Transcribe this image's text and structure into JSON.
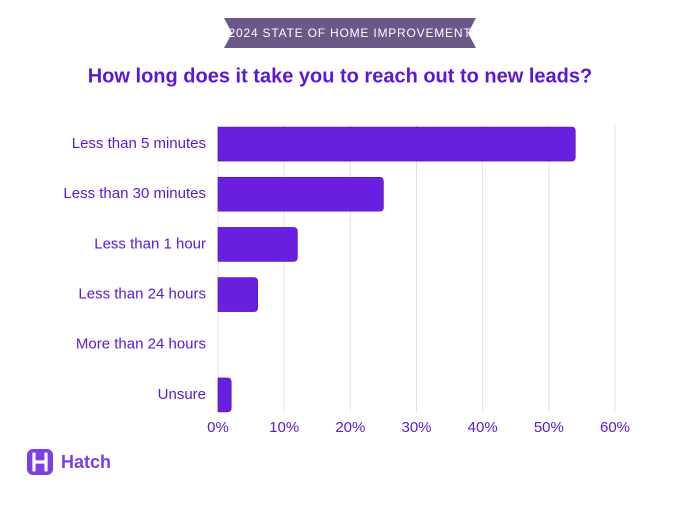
{
  "chart_data": {
    "type": "bar",
    "orientation": "horizontal",
    "subtitle": "2024 STATE OF HOME IMPROVEMENT",
    "title": "How long does it take you to reach out to new leads?",
    "logo": "Hatch",
    "categories": [
      "Less than 5 minutes",
      "Less than 30 minutes",
      "Less than 1 hour",
      "Less than 24 hours",
      "More than 24 hours",
      "Unsure"
    ],
    "values": [
      54,
      25,
      12,
      6,
      0,
      2
    ],
    "color": "#6a1ee0",
    "xlim": [
      0,
      60
    ],
    "xticks": [
      {
        "value": 0,
        "label": "0%"
      },
      {
        "value": 10,
        "label": "10%"
      },
      {
        "value": 20,
        "label": "20%"
      },
      {
        "value": 30,
        "label": "30%"
      },
      {
        "value": 40,
        "label": "40%"
      },
      {
        "value": 50,
        "label": "50%"
      },
      {
        "value": 60,
        "label": "60%"
      }
    ],
    "grid": true
  }
}
